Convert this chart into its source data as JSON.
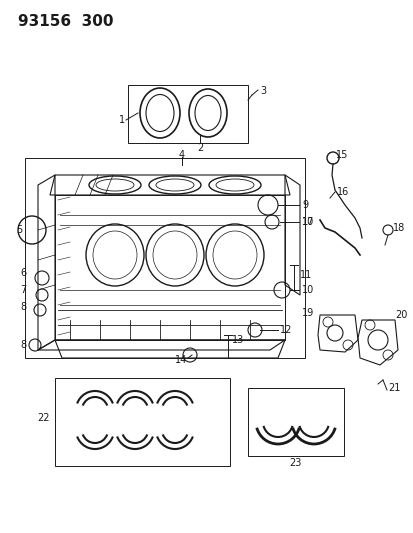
{
  "title": "93156  300",
  "bg_color": "#ffffff",
  "line_color": "#1a1a1a",
  "title_fontsize": 11,
  "label_fontsize": 7,
  "fig_width": 4.14,
  "fig_height": 5.33,
  "dpi": 100
}
